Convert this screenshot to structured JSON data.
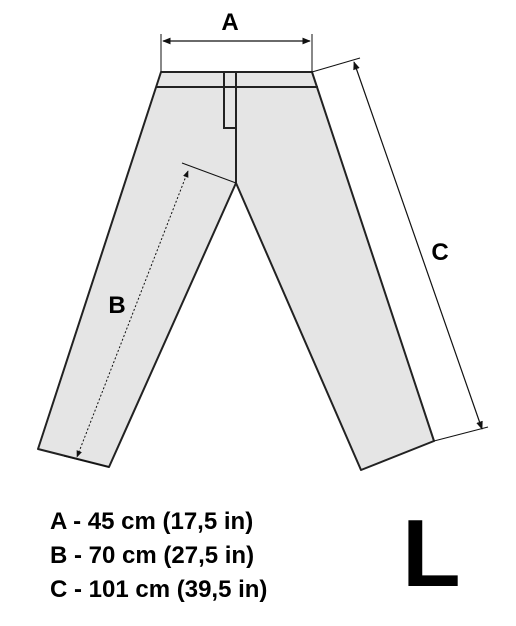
{
  "diagram": {
    "labels": {
      "a": "A",
      "b": "B",
      "c": "C"
    },
    "colors": {
      "fabric": "#e5e5e5",
      "outline": "#222222",
      "dimension": "#111111"
    }
  },
  "measurements": [
    {
      "key": "A",
      "text": "A - 45 cm (17,5 in)"
    },
    {
      "key": "B",
      "text": "B - 70 cm (27,5 in)"
    },
    {
      "key": "C",
      "text": "C - 101 cm (39,5 in)"
    }
  ],
  "size": "L"
}
